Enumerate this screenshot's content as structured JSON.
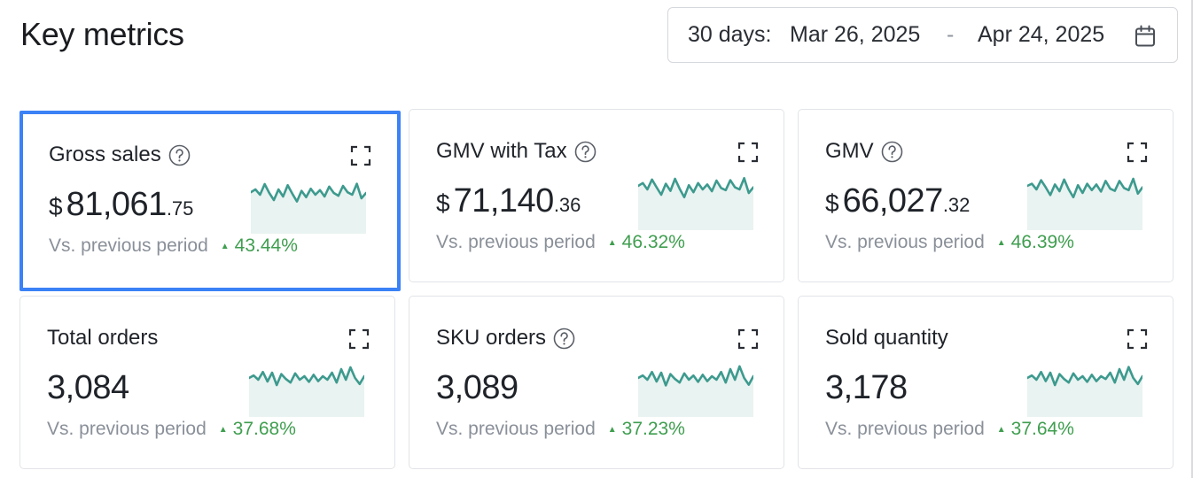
{
  "header": {
    "title": "Key metrics"
  },
  "date_range": {
    "prefix": "30 days:",
    "start": "Mar 26, 2025",
    "separator": "-",
    "end": "Apr 24, 2025",
    "icon": "calendar-icon"
  },
  "colors": {
    "accent_selected": "#3b82f6",
    "positive": "#3f9e4f",
    "sparkline_stroke": "#3d9a8e",
    "sparkline_fill": "#e9f3f1"
  },
  "metrics": [
    {
      "title": "Gross sales",
      "has_help": true,
      "selected": true,
      "currency": "$",
      "value_int": "81,061",
      "value_dec": ".75",
      "comparison_label": "Vs. previous period",
      "change": "43.44%",
      "trend": [
        0.62,
        0.7,
        0.55,
        0.85,
        0.6,
        0.4,
        0.7,
        0.5,
        0.82,
        0.58,
        0.36,
        0.66,
        0.48,
        0.72,
        0.55,
        0.68,
        0.5,
        0.78,
        0.6,
        0.52,
        0.8,
        0.62,
        0.55,
        0.86,
        0.45,
        0.6
      ]
    },
    {
      "title": "GMV with Tax",
      "has_help": true,
      "selected": false,
      "currency": "$",
      "value_int": "71,140",
      "value_dec": ".36",
      "comparison_label": "Vs. previous period",
      "change": "46.32%",
      "trend": [
        0.7,
        0.78,
        0.6,
        0.88,
        0.66,
        0.45,
        0.76,
        0.56,
        0.9,
        0.62,
        0.38,
        0.72,
        0.52,
        0.78,
        0.6,
        0.74,
        0.55,
        0.85,
        0.64,
        0.58,
        0.86,
        0.66,
        0.6,
        0.92,
        0.5,
        0.66
      ]
    },
    {
      "title": "GMV",
      "has_help": true,
      "selected": false,
      "currency": "$",
      "value_int": "66,027",
      "value_dec": ".32",
      "comparison_label": "Vs. previous period",
      "change": "46.39%",
      "trend": [
        0.7,
        0.76,
        0.6,
        0.86,
        0.66,
        0.44,
        0.74,
        0.55,
        0.88,
        0.6,
        0.38,
        0.72,
        0.5,
        0.76,
        0.58,
        0.74,
        0.54,
        0.84,
        0.62,
        0.56,
        0.84,
        0.64,
        0.58,
        0.9,
        0.48,
        0.66
      ]
    },
    {
      "title": "Total orders",
      "has_help": false,
      "selected": false,
      "currency": "",
      "value_int": "3,084",
      "value_dec": "",
      "comparison_label": "Vs. previous period",
      "change": "37.68%",
      "trend": [
        0.55,
        0.62,
        0.5,
        0.72,
        0.45,
        0.7,
        0.35,
        0.66,
        0.52,
        0.42,
        0.68,
        0.5,
        0.6,
        0.44,
        0.64,
        0.46,
        0.6,
        0.5,
        0.7,
        0.42,
        0.8,
        0.5,
        0.85,
        0.55,
        0.38,
        0.6
      ]
    },
    {
      "title": "SKU orders",
      "has_help": true,
      "selected": false,
      "currency": "",
      "value_int": "3,089",
      "value_dec": "",
      "comparison_label": "Vs. previous period",
      "change": "37.23%",
      "trend": [
        0.55,
        0.62,
        0.5,
        0.72,
        0.45,
        0.7,
        0.34,
        0.66,
        0.52,
        0.42,
        0.68,
        0.5,
        0.62,
        0.44,
        0.64,
        0.46,
        0.6,
        0.5,
        0.72,
        0.42,
        0.8,
        0.5,
        0.88,
        0.55,
        0.36,
        0.6
      ]
    },
    {
      "title": "Sold quantity",
      "has_help": false,
      "selected": false,
      "currency": "",
      "value_int": "3,178",
      "value_dec": "",
      "comparison_label": "Vs. previous period",
      "change": "37.64%",
      "trend": [
        0.55,
        0.62,
        0.5,
        0.72,
        0.46,
        0.7,
        0.35,
        0.66,
        0.52,
        0.42,
        0.68,
        0.5,
        0.6,
        0.44,
        0.64,
        0.46,
        0.6,
        0.52,
        0.7,
        0.42,
        0.8,
        0.5,
        0.86,
        0.55,
        0.38,
        0.6
      ]
    }
  ]
}
